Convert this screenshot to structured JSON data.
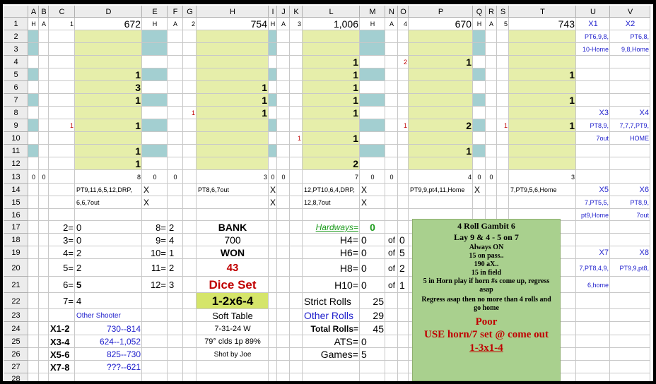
{
  "columns": [
    "A",
    "B",
    "C",
    "D",
    "E",
    "F",
    "G",
    "H",
    "I",
    "J",
    "K",
    "L",
    "M",
    "N",
    "O",
    "P",
    "Q",
    "R",
    "S",
    "T",
    "U",
    "V"
  ],
  "row_numbers": [
    "1",
    "2",
    "3",
    "4",
    "5",
    "6",
    "7",
    "8",
    "9",
    "10",
    "11",
    "12",
    "13",
    "14",
    "15",
    "16",
    "17",
    "18",
    "19",
    "20",
    "21",
    "22",
    "23",
    "24",
    "25",
    "26",
    "27",
    "28"
  ],
  "rows": [
    {
      "A": "H",
      "B": "A",
      "C": "1",
      "D": "672",
      "E": "H",
      "F": "A",
      "G": "2",
      "H": "754",
      "I": "H",
      "J": "A",
      "K": "3",
      "L": "1,006",
      "M": "H",
      "N": "A",
      "O": "4",
      "P": "670",
      "Q": "H",
      "R": "A",
      "S": "5",
      "T": "743",
      "U": "X1",
      "V": "X2"
    },
    {
      "U": "PT6,9,8,",
      "V": "PT6,8,"
    },
    {
      "U": "10-Home",
      "V": "9,8,Home"
    },
    {
      "L": "1",
      "O": "2",
      "P": "1"
    },
    {
      "D": "1",
      "L": "1",
      "T": "1"
    },
    {
      "D": "3",
      "H": "1",
      "L": "1"
    },
    {
      "D": "1",
      "H": "1",
      "L": "1",
      "T": "1"
    },
    {
      "G": "1",
      "H": "1",
      "L": "1",
      "U": "X3",
      "V": "X4"
    },
    {
      "C": "1",
      "D": "1",
      "O": "1",
      "P": "2",
      "S": "1",
      "T": "1",
      "U": "PT8,9,",
      "V": "7,7,7,PT9,"
    },
    {
      "K": "1",
      "L": "1",
      "U": "7out",
      "V": "HOME"
    },
    {
      "D": "1",
      "P": "1"
    },
    {
      "D": "1",
      "L": "2"
    },
    {
      "A": "0",
      "B": "0",
      "D": "8",
      "E": "0",
      "F": "0",
      "H": "3",
      "I": "0",
      "J": "0",
      "L": "7",
      "M": "0",
      "N": "0",
      "P": "4",
      "Q": "0",
      "R": "0",
      "T": "3"
    },
    {
      "D": "PT9,11,6,5,12,DRP,",
      "E": "X",
      "H": "PT8,6,7out",
      "I": "X",
      "L": "12,PT10,6,4,DRP,",
      "M": "X",
      "P": "PT9,9,pt4,11,Home",
      "Q": "X",
      "T": "7,PT9,5,6,Home",
      "U": "X5",
      "V": "X6"
    },
    {
      "D": "6,6,7out",
      "E": "X",
      "I": "X",
      "L": "12,8,7out",
      "M": "X",
      "U": "7,PT5,5,",
      "V": "PT8,9,"
    },
    {
      "U": "pt9,Home",
      "V": "7out"
    },
    {
      "C": "2=",
      "D": "0",
      "E": "8=",
      "F": "2",
      "H": "BANK",
      "L": "Hardways=",
      "M": "0"
    },
    {
      "C": "3=",
      "D": "0",
      "E": "9=",
      "F": "4",
      "H": "700",
      "L": "H4=",
      "M": "0",
      "N": "of",
      "O": "0"
    },
    {
      "C": "4=",
      "D": "2",
      "E": "10=",
      "F": "1",
      "H": "WON",
      "L": "H6=",
      "M": "0",
      "N": "of",
      "O": "5",
      "U": "X7",
      "V": "X8"
    },
    {
      "C": "5=",
      "D": "2",
      "E": "11=",
      "F": "2",
      "H": "43",
      "L": "H8=",
      "M": "0",
      "N": "of",
      "O": "2",
      "U": "7,PT8,4,9,",
      "V": "PT9,9,pt8,"
    },
    {
      "C": "6=",
      "D": "5",
      "E": "12=",
      "F": "3",
      "H": "Dice Set",
      "L": "H10=",
      "M": "0",
      "N": "of",
      "O": "1",
      "U": "6,home"
    },
    {
      "C": "7=",
      "D": "4",
      "H": "1-2x6-4",
      "L": "Strict Rolls",
      "M": "25"
    },
    {
      "D": "Other  Shooter",
      "H": "Soft Table",
      "L": "Other Rolls",
      "M": "29"
    },
    {
      "C": "X1-2",
      "D": "730--814",
      "H": "7-31-24 W",
      "L": "Total Rolls=",
      "M": "45"
    },
    {
      "C": "X3-4",
      "D": "624--1,052",
      "H": "79° clds 1p 89%",
      "L": "ATS=",
      "M": "0"
    },
    {
      "C": "X5-6",
      "D": "825--730",
      "H": "Shot by Joe",
      "L": "Games=",
      "M": "5"
    },
    {
      "C": "X7-8",
      "D": "???--621"
    },
    {}
  ],
  "text_box": {
    "lines": [
      "4 Roll Gambit 6",
      "Lay 9 & 4 - 5 on 7",
      "Always ON",
      "15 on pass..",
      "190 aX..",
      "15 in field",
      "5 in Horn play if horn #s come up, regress",
      "asap",
      "Regress asap then no more than 4 rolls and",
      "go home",
      "Poor",
      "USE horn/7 set @ come out",
      "1-3x1-4"
    ]
  }
}
